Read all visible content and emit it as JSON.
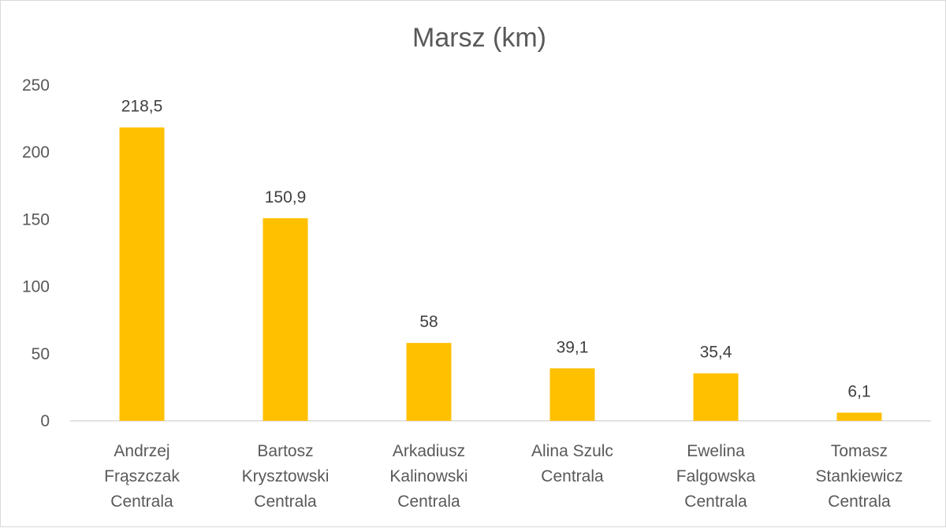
{
  "chart_data": {
    "type": "bar",
    "title": "Marsz (km)",
    "xlabel": "",
    "ylabel": "",
    "ylim": [
      0,
      250
    ],
    "yticks": [
      0,
      50,
      100,
      150,
      200,
      250
    ],
    "grid": false,
    "legend": "none",
    "bar_color": "#FFC000",
    "categories": [
      [
        "Andrzej",
        "Frąszczak",
        "Centrala"
      ],
      [
        "Bartosz",
        "Krysztowski",
        "Centrala"
      ],
      [
        "Arkadiusz",
        "Kalinowski",
        "Centrala"
      ],
      [
        "Alina Szulc",
        "Centrala"
      ],
      [
        "Ewelina",
        "Falgowska",
        "Centrala"
      ],
      [
        "Tomasz",
        "Stankiewicz",
        "Centrala"
      ]
    ],
    "values": [
      218.5,
      150.9,
      58,
      39.1,
      35.4,
      6.1
    ],
    "data_labels": [
      "218,5",
      "150,9",
      "58",
      "39,1",
      "35,4",
      "6,1"
    ]
  }
}
